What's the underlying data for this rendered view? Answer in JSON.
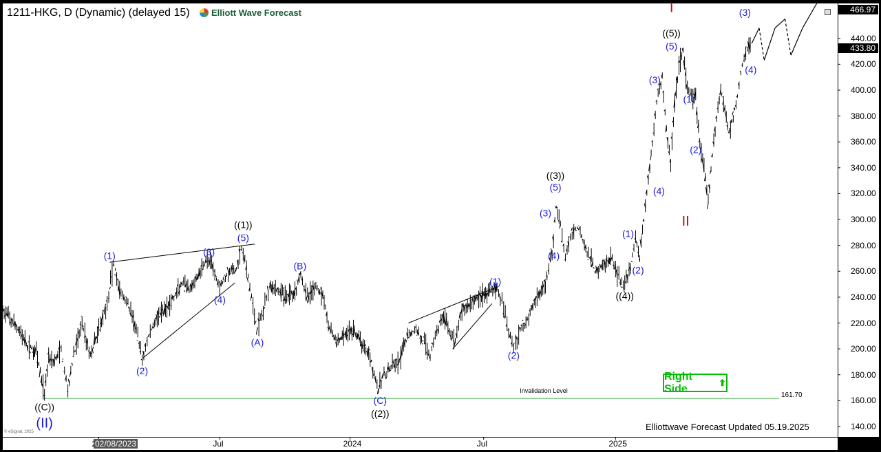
{
  "header": {
    "symbol_line": "1211-HKG, D (Dynamic) (delayed 15)",
    "logo_text": "Elliott Wave Forecast",
    "logo_icon": "ewf-logo-icon"
  },
  "footer": {
    "updated": "Elliottwave Forecast Updated 05.19.2025",
    "copyright": "© eSignal, 2025"
  },
  "badge": {
    "label": "Right Side",
    "icon": "up-arrow-icon",
    "color": "#00c000"
  },
  "colors": {
    "wave_blue": "#1a1adb",
    "wave_red": "#d00000",
    "invalidation": "#3cb043",
    "bars": "#000000"
  },
  "price_tags": {
    "high": "466.97",
    "last": "433.80"
  },
  "invalidation": {
    "label": "Invalidation Level",
    "value_text": "161.70"
  },
  "x_hover_label": "02/08/2023",
  "chart_data": {
    "type": "line",
    "title": "",
    "symbol": "1211-HKG",
    "y_ticks": [
      140,
      160,
      180,
      200,
      220,
      240,
      260,
      280,
      300,
      320,
      340,
      360,
      380,
      400,
      420,
      440,
      460
    ],
    "ylim": [
      132,
      467
    ],
    "x_ticks": [
      {
        "label": "202",
        "t": 0.115
      },
      {
        "label": "Jul",
        "t": 0.26
      },
      {
        "label": "2024",
        "t": 0.416
      },
      {
        "label": "Jul",
        "t": 0.576
      },
      {
        "label": "2025",
        "t": 0.734
      }
    ],
    "invalidation_level": 161.7,
    "series": [
      {
        "kind": "price-path",
        "points": [
          [
            0.0,
            230
          ],
          [
            0.01,
            222
          ],
          [
            0.02,
            214
          ],
          [
            0.03,
            202
          ],
          [
            0.04,
            198
          ],
          [
            0.05,
            165
          ],
          [
            0.055,
            195
          ],
          [
            0.062,
            190
          ],
          [
            0.07,
            200
          ],
          [
            0.078,
            168
          ],
          [
            0.085,
            195
          ],
          [
            0.095,
            220
          ],
          [
            0.105,
            195
          ],
          [
            0.115,
            215
          ],
          [
            0.125,
            235
          ],
          [
            0.133,
            266
          ],
          [
            0.14,
            245
          ],
          [
            0.15,
            235
          ],
          [
            0.16,
            215
          ],
          [
            0.167,
            192
          ],
          [
            0.175,
            210
          ],
          [
            0.185,
            225
          ],
          [
            0.195,
            230
          ],
          [
            0.205,
            240
          ],
          [
            0.215,
            250
          ],
          [
            0.225,
            245
          ],
          [
            0.235,
            258
          ],
          [
            0.245,
            270
          ],
          [
            0.252,
            262
          ],
          [
            0.26,
            248
          ],
          [
            0.27,
            260
          ],
          [
            0.28,
            262
          ],
          [
            0.286,
            278
          ],
          [
            0.292,
            262
          ],
          [
            0.298,
            240
          ],
          [
            0.305,
            215
          ],
          [
            0.312,
            230
          ],
          [
            0.32,
            250
          ],
          [
            0.33,
            245
          ],
          [
            0.34,
            240
          ],
          [
            0.35,
            245
          ],
          [
            0.357,
            258
          ],
          [
            0.365,
            240
          ],
          [
            0.375,
            248
          ],
          [
            0.385,
            240
          ],
          [
            0.39,
            218
          ],
          [
            0.4,
            205
          ],
          [
            0.41,
            210
          ],
          [
            0.42,
            215
          ],
          [
            0.43,
            205
          ],
          [
            0.44,
            195
          ],
          [
            0.45,
            168
          ],
          [
            0.455,
            178
          ],
          [
            0.465,
            185
          ],
          [
            0.475,
            190
          ],
          [
            0.485,
            210
          ],
          [
            0.495,
            215
          ],
          [
            0.505,
            205
          ],
          [
            0.512,
            195
          ],
          [
            0.52,
            215
          ],
          [
            0.528,
            225
          ],
          [
            0.535,
            215
          ],
          [
            0.542,
            205
          ],
          [
            0.55,
            230
          ],
          [
            0.56,
            235
          ],
          [
            0.57,
            240
          ],
          [
            0.58,
            243
          ],
          [
            0.592,
            248
          ],
          [
            0.598,
            235
          ],
          [
            0.606,
            215
          ],
          [
            0.612,
            202
          ],
          [
            0.62,
            215
          ],
          [
            0.63,
            225
          ],
          [
            0.64,
            240
          ],
          [
            0.65,
            250
          ],
          [
            0.658,
            275
          ],
          [
            0.663,
            310
          ],
          [
            0.668,
            295
          ],
          [
            0.674,
            270
          ],
          [
            0.682,
            290
          ],
          [
            0.69,
            295
          ],
          [
            0.7,
            275
          ],
          [
            0.71,
            260
          ],
          [
            0.72,
            265
          ],
          [
            0.73,
            270
          ],
          [
            0.738,
            255
          ],
          [
            0.745,
            248
          ],
          [
            0.752,
            265
          ],
          [
            0.758,
            285
          ],
          [
            0.763,
            270
          ],
          [
            0.768,
            300
          ],
          [
            0.775,
            340
          ],
          [
            0.78,
            370
          ],
          [
            0.785,
            400
          ],
          [
            0.79,
            410
          ],
          [
            0.795,
            370
          ],
          [
            0.8,
            345
          ],
          [
            0.805,
            390
          ],
          [
            0.81,
            420
          ],
          [
            0.815,
            430
          ],
          [
            0.82,
            400
          ],
          [
            0.825,
            395
          ],
          [
            0.83,
            395
          ],
          [
            0.835,
            360
          ],
          [
            0.84,
            340
          ],
          [
            0.845,
            312
          ],
          [
            0.85,
            350
          ],
          [
            0.855,
            380
          ],
          [
            0.86,
            400
          ],
          [
            0.865,
            385
          ],
          [
            0.87,
            368
          ],
          [
            0.875,
            380
          ],
          [
            0.88,
            395
          ],
          [
            0.886,
            420
          ],
          [
            0.892,
            433
          ],
          [
            0.897,
            436
          ]
        ]
      },
      {
        "kind": "projection",
        "points": [
          [
            0.897,
            436
          ],
          [
            0.906,
            448
          ],
          [
            0.912,
            423
          ],
          [
            0.925,
            448
          ],
          [
            0.937,
            455
          ],
          [
            0.944,
            427
          ],
          [
            0.958,
            448
          ],
          [
            0.975,
            467
          ]
        ],
        "dashed_segments": [
          [
            0.906,
            0.912
          ],
          [
            0.937,
            0.944
          ]
        ]
      }
    ],
    "trendlines": [
      [
        [
          0.128,
          267
        ],
        [
          0.302,
          281
        ]
      ],
      [
        [
          0.168,
          193
        ],
        [
          0.278,
          251
        ]
      ],
      [
        [
          0.486,
          220
        ],
        [
          0.593,
          248
        ]
      ],
      [
        [
          0.539,
          200
        ],
        [
          0.586,
          235
        ]
      ]
    ],
    "labels": [
      {
        "text": "((C))",
        "t": 0.05,
        "v": 155,
        "color": "black"
      },
      {
        "text": "(II)",
        "t": 0.05,
        "v": 143,
        "color": "blue",
        "size": "large"
      },
      {
        "text": "(1)",
        "t": 0.128,
        "v": 272,
        "color": "blue"
      },
      {
        "text": "(2)",
        "t": 0.167,
        "v": 183,
        "color": "blue"
      },
      {
        "text": "(3)",
        "t": 0.247,
        "v": 275,
        "color": "blue"
      },
      {
        "text": "(4)",
        "t": 0.26,
        "v": 238,
        "color": "blue"
      },
      {
        "text": "((1))",
        "t": 0.288,
        "v": 296,
        "color": "black"
      },
      {
        "text": "(5)",
        "t": 0.288,
        "v": 286,
        "color": "blue"
      },
      {
        "text": "(A)",
        "t": 0.305,
        "v": 205,
        "color": "blue"
      },
      {
        "text": "(B)",
        "t": 0.356,
        "v": 264,
        "color": "blue"
      },
      {
        "text": "(C)",
        "t": 0.452,
        "v": 160,
        "color": "blue"
      },
      {
        "text": "((2))",
        "t": 0.452,
        "v": 150,
        "color": "black"
      },
      {
        "text": "(1)",
        "t": 0.59,
        "v": 252,
        "color": "blue"
      },
      {
        "text": "(2)",
        "t": 0.612,
        "v": 195,
        "color": "blue"
      },
      {
        "text": "((3))",
        "t": 0.662,
        "v": 334,
        "color": "black"
      },
      {
        "text": "(5)",
        "t": 0.662,
        "v": 325,
        "color": "blue"
      },
      {
        "text": "(3)",
        "t": 0.65,
        "v": 305,
        "color": "blue"
      },
      {
        "text": "(4)",
        "t": 0.66,
        "v": 272,
        "color": "blue"
      },
      {
        "text": "(1)",
        "t": 0.749,
        "v": 289,
        "color": "blue"
      },
      {
        "text": "(2)",
        "t": 0.761,
        "v": 261,
        "color": "blue"
      },
      {
        "text": "((4))",
        "t": 0.745,
        "v": 241,
        "color": "black"
      },
      {
        "text": "(4)",
        "t": 0.786,
        "v": 322,
        "color": "blue"
      },
      {
        "text": "(3)",
        "t": 0.781,
        "v": 408,
        "color": "blue"
      },
      {
        "text": "I",
        "t": 0.801,
        "v": 464,
        "color": "red",
        "size": "large"
      },
      {
        "text": "((5))",
        "t": 0.801,
        "v": 444,
        "color": "black"
      },
      {
        "text": "(5)",
        "t": 0.801,
        "v": 434,
        "color": "blue"
      },
      {
        "text": "(1)",
        "t": 0.822,
        "v": 393,
        "color": "blue"
      },
      {
        "text": "(2)",
        "t": 0.83,
        "v": 354,
        "color": "blue"
      },
      {
        "text": "II",
        "t": 0.818,
        "v": 299,
        "color": "red",
        "size": "large"
      },
      {
        "text": "(3)",
        "t": 0.889,
        "v": 460,
        "color": "blue"
      },
      {
        "text": "(4)",
        "t": 0.896,
        "v": 416,
        "color": "blue"
      }
    ]
  }
}
